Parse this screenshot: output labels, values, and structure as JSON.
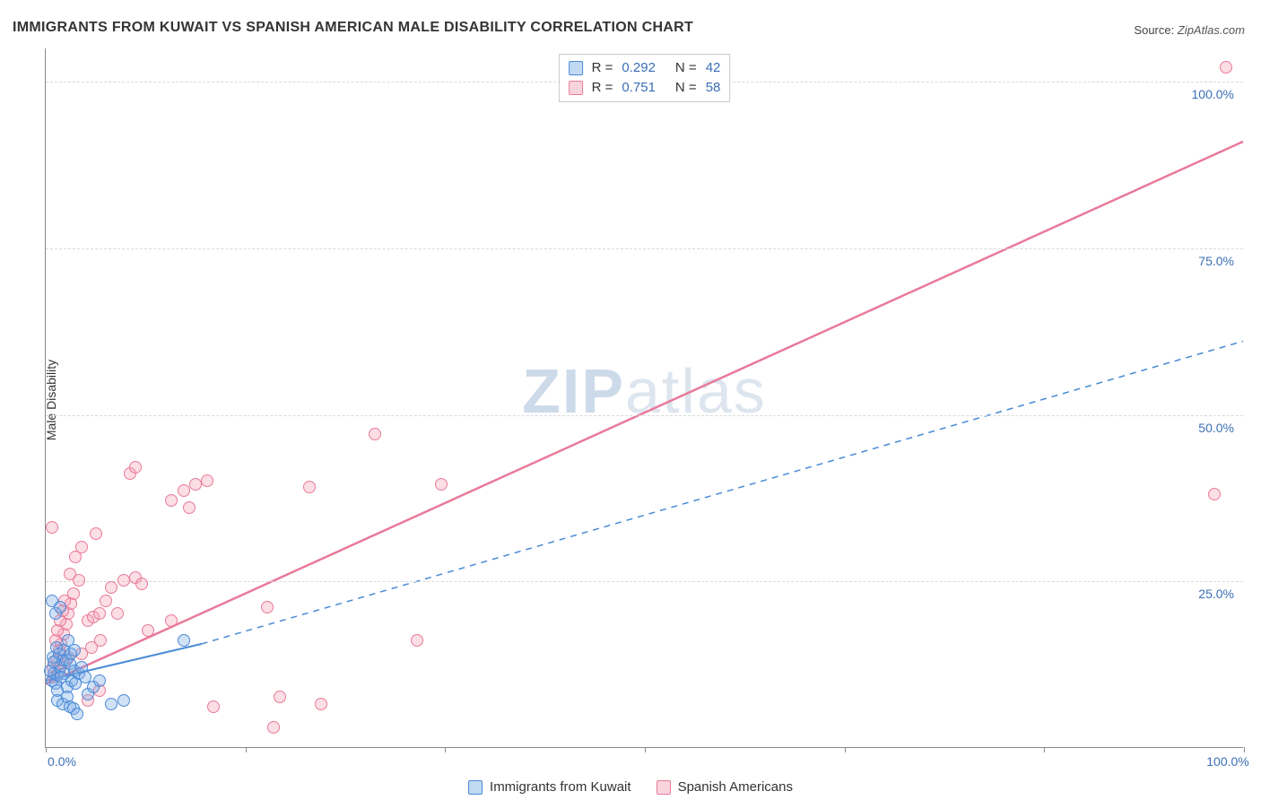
{
  "title": "IMMIGRANTS FROM KUWAIT VS SPANISH AMERICAN MALE DISABILITY CORRELATION CHART",
  "source": {
    "prefix": "Source:",
    "name": "ZipAtlas.com"
  },
  "y_axis": {
    "label": "Male Disability"
  },
  "watermark": {
    "a": "ZIP",
    "b": "atlas"
  },
  "chart": {
    "type": "scatter",
    "xlim": [
      0,
      100
    ],
    "ylim": [
      0,
      105
    ],
    "y_ticks": [
      25,
      50,
      75,
      100
    ],
    "y_tick_labels": [
      "25.0%",
      "50.0%",
      "75.0%",
      "100.0%"
    ],
    "x_ticks": [
      0,
      16.67,
      33.33,
      50,
      66.67,
      83.33,
      100
    ],
    "x_tick_labels": {
      "0": "0.0%",
      "100": "100.0%"
    },
    "grid_color": "#d9d9d9",
    "axis_color": "#8a8a8a",
    "background_color": "#ffffff",
    "label_color": "#3b6fb6",
    "point_radius": 7,
    "series": {
      "blue": {
        "name": "Immigrants from Kuwait",
        "fill": "rgba(120,170,230,0.35)",
        "stroke": "#4a8bd6",
        "R": "0.292",
        "N": "42",
        "trend": {
          "solid": [
            [
              0,
              10
            ],
            [
              13,
              15.5
            ]
          ],
          "dashed": [
            [
              13,
              15.5
            ],
            [
              100,
              61
            ]
          ],
          "width": 2
        },
        "points": [
          [
            0.5,
            10
          ],
          [
            0.7,
            11
          ],
          [
            0.8,
            9.5
          ],
          [
            1.0,
            10.8
          ],
          [
            1.2,
            12
          ],
          [
            1.4,
            13
          ],
          [
            1.0,
            8.5
          ],
          [
            1.6,
            11
          ],
          [
            1.8,
            9
          ],
          [
            2.0,
            12.5
          ],
          [
            2.2,
            10
          ],
          [
            2.4,
            11.5
          ],
          [
            0.6,
            13.5
          ],
          [
            1.1,
            14
          ],
          [
            1.5,
            14.5
          ],
          [
            0.9,
            15
          ],
          [
            0.4,
            11.5
          ],
          [
            0.7,
            12.8
          ],
          [
            1.3,
            10.5
          ],
          [
            1.7,
            13
          ],
          [
            2.1,
            14
          ],
          [
            2.5,
            9.5
          ],
          [
            2.8,
            11
          ],
          [
            3.0,
            12
          ],
          [
            3.3,
            10.5
          ],
          [
            0.5,
            22
          ],
          [
            0.8,
            20
          ],
          [
            1.2,
            21
          ],
          [
            1.0,
            7
          ],
          [
            1.4,
            6.5
          ],
          [
            1.8,
            7.5
          ],
          [
            2.0,
            6
          ],
          [
            2.3,
            5.8
          ],
          [
            3.5,
            8
          ],
          [
            4.0,
            9
          ],
          [
            4.5,
            10
          ],
          [
            5.5,
            6.5
          ],
          [
            6.5,
            7
          ],
          [
            2.6,
            5
          ],
          [
            1.9,
            16
          ],
          [
            2.4,
            14.5
          ],
          [
            11.5,
            16
          ]
        ]
      },
      "pink": {
        "name": "Spanish Americans",
        "fill": "rgba(245,160,180,0.35)",
        "stroke": "#e87a9a",
        "R": "0.751",
        "N": "58",
        "trend": {
          "solid": [
            [
              0,
              9.5
            ],
            [
              100,
              91
            ]
          ],
          "width": 2.5
        },
        "points": [
          [
            0.6,
            12
          ],
          [
            0.9,
            13
          ],
          [
            1.1,
            14.5
          ],
          [
            1.3,
            15.5
          ],
          [
            1.5,
            17
          ],
          [
            1.7,
            18.5
          ],
          [
            1.9,
            20
          ],
          [
            2.1,
            21.5
          ],
          [
            2.3,
            23
          ],
          [
            0.8,
            16
          ],
          [
            1.0,
            17.5
          ],
          [
            1.2,
            19
          ],
          [
            1.4,
            20.5
          ],
          [
            1.6,
            22
          ],
          [
            2.5,
            28.5
          ],
          [
            3.0,
            30
          ],
          [
            0.7,
            10.5
          ],
          [
            1.1,
            11.5
          ],
          [
            1.5,
            12.5
          ],
          [
            1.9,
            13.5
          ],
          [
            3.5,
            19
          ],
          [
            4.0,
            19.5
          ],
          [
            4.5,
            20
          ],
          [
            5.0,
            22
          ],
          [
            5.5,
            24
          ],
          [
            6.5,
            25
          ],
          [
            7.5,
            25.5
          ],
          [
            8.0,
            24.5
          ],
          [
            4.2,
            32
          ],
          [
            0.5,
            33
          ],
          [
            8.5,
            17.5
          ],
          [
            10.5,
            19
          ],
          [
            3.5,
            7
          ],
          [
            4.5,
            8.5
          ],
          [
            10.5,
            37
          ],
          [
            11.5,
            38.5
          ],
          [
            12.5,
            39.5
          ],
          [
            13.5,
            40
          ],
          [
            12.0,
            36
          ],
          [
            7.0,
            41
          ],
          [
            7.5,
            42
          ],
          [
            18.5,
            21
          ],
          [
            22.0,
            39
          ],
          [
            33.0,
            39.5
          ],
          [
            27.5,
            47
          ],
          [
            14.0,
            6
          ],
          [
            19.5,
            7.5
          ],
          [
            23.0,
            6.5
          ],
          [
            31.0,
            16
          ],
          [
            19.0,
            3
          ],
          [
            3.0,
            14
          ],
          [
            3.8,
            15
          ],
          [
            4.6,
            16
          ],
          [
            6.0,
            20
          ],
          [
            2.8,
            25
          ],
          [
            2.0,
            26
          ],
          [
            98.5,
            102
          ],
          [
            97.5,
            38
          ]
        ]
      }
    }
  },
  "legend_top": {
    "rows": [
      {
        "swatch": "blue",
        "R_label": "R =",
        "R": "0.292",
        "N_label": "N =",
        "N": "42"
      },
      {
        "swatch": "pink",
        "R_label": "R =",
        "R": "0.751",
        "N_label": "N =",
        "N": "58"
      }
    ]
  },
  "legend_bottom": {
    "items": [
      {
        "swatch": "blue",
        "label": "Immigrants from Kuwait"
      },
      {
        "swatch": "pink",
        "label": "Spanish Americans"
      }
    ]
  }
}
